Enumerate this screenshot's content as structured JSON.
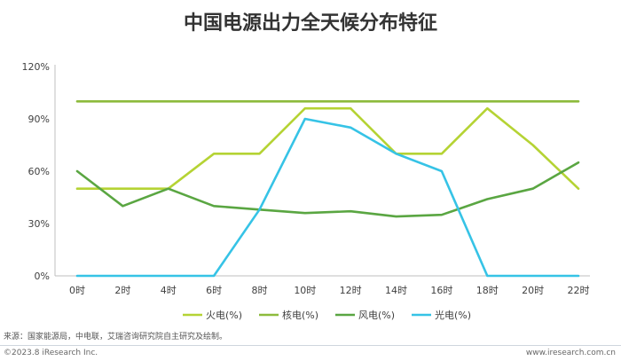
{
  "title": "中国电源出力全天候分布特征",
  "source": "来源：国家能源局，中电联，艾瑞咨询研究院自主研究及绘制。",
  "copyright": "©2023.8 iResearch Inc.",
  "website": "www.iresearch.com.cn",
  "chart_data": {
    "type": "line",
    "title": "中国电源出力全天候分布特征",
    "categories": [
      "0时",
      "2时",
      "4时",
      "6时",
      "8时",
      "10时",
      "12时",
      "14时",
      "16时",
      "18时",
      "20时",
      "22时"
    ],
    "yticks": [
      "0%",
      "30%",
      "60%",
      "90%",
      "120%"
    ],
    "ylim": [
      0,
      120
    ],
    "y_unit": "%",
    "grid": false,
    "legend_position": "bottom",
    "series": [
      {
        "name": "火电(%)",
        "color": "#b5d334",
        "values": [
          50,
          50,
          50,
          70,
          70,
          96,
          96,
          70,
          70,
          96,
          75,
          50
        ]
      },
      {
        "name": "核电(%)",
        "color": "#8dbb3c",
        "values": [
          100,
          100,
          100,
          100,
          100,
          100,
          100,
          100,
          100,
          100,
          100,
          100
        ]
      },
      {
        "name": "风电(%)",
        "color": "#5aa642",
        "values": [
          60,
          40,
          50,
          40,
          38,
          36,
          37,
          34,
          35,
          44,
          50,
          65
        ]
      },
      {
        "name": "光电(%)",
        "color": "#36c3e6",
        "values": [
          0,
          0,
          0,
          0,
          38,
          90,
          85,
          70,
          60,
          0,
          0,
          0
        ]
      }
    ]
  }
}
